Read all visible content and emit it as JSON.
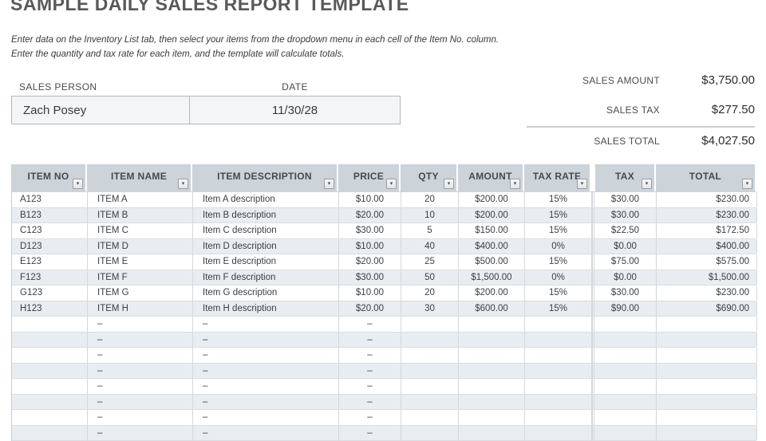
{
  "title": "SAMPLE DAILY SALES REPORT TEMPLATE",
  "instructions": {
    "line1": "Enter data on the Inventory List tab, then select your items from the dropdown menu in each cell of the Item No. column.",
    "line2": "Enter the quantity and tax rate for each item, and the template will calculate totals."
  },
  "form": {
    "sales_person_label": "SALES PERSON",
    "sales_person_value": "Zach Posey",
    "date_label": "DATE",
    "date_value": "11/30/28"
  },
  "summary": {
    "sales_amount_label": "SALES AMOUNT",
    "sales_amount_value": "$3,750.00",
    "sales_tax_label": "SALES TAX",
    "sales_tax_value": "$277.50",
    "sales_total_label": "SALES TOTAL",
    "sales_total_value": "$4,027.50"
  },
  "table": {
    "columns": [
      "ITEM NO",
      "ITEM NAME",
      "ITEM DESCRIPTION",
      "PRICE",
      "QTY",
      "AMOUNT",
      "TAX RATE",
      "TAX",
      "TOTAL"
    ],
    "filter_icon": "▾",
    "rows": [
      [
        "A123",
        "ITEM A",
        "Item A description",
        "$10.00",
        "20",
        "$200.00",
        "15%",
        "$30.00",
        "$230.00"
      ],
      [
        "B123",
        "ITEM B",
        "Item B description",
        "$20.00",
        "10",
        "$200.00",
        "15%",
        "$30.00",
        "$230.00"
      ],
      [
        "C123",
        "ITEM C",
        "Item C description",
        "$30.00",
        "5",
        "$150.00",
        "15%",
        "$22.50",
        "$172.50"
      ],
      [
        "D123",
        "ITEM D",
        "Item D description",
        "$10.00",
        "40",
        "$400.00",
        "0%",
        "$0.00",
        "$400.00"
      ],
      [
        "E123",
        "ITEM E",
        "Item E description",
        "$20.00",
        "25",
        "$500.00",
        "15%",
        "$75.00",
        "$575.00"
      ],
      [
        "F123",
        "ITEM F",
        "Item F description",
        "$30.00",
        "50",
        "$1,500.00",
        "0%",
        "$0.00",
        "$1,500.00"
      ],
      [
        "G123",
        "ITEM G",
        "Item G description",
        "$10.00",
        "20",
        "$200.00",
        "15%",
        "$30.00",
        "$230.00"
      ],
      [
        "H123",
        "ITEM H",
        "Item H description",
        "$20.00",
        "30",
        "$600.00",
        "15%",
        "$90.00",
        "$690.00"
      ]
    ],
    "empty_row": [
      "",
      "–",
      "–",
      "–",
      "",
      "",
      "",
      "",
      ""
    ],
    "empty_row_count": 8
  },
  "colors": {
    "title_text": "#595959",
    "header_bg": "#ccd3d9",
    "alt_row_bg": "#e9edf1"
  }
}
